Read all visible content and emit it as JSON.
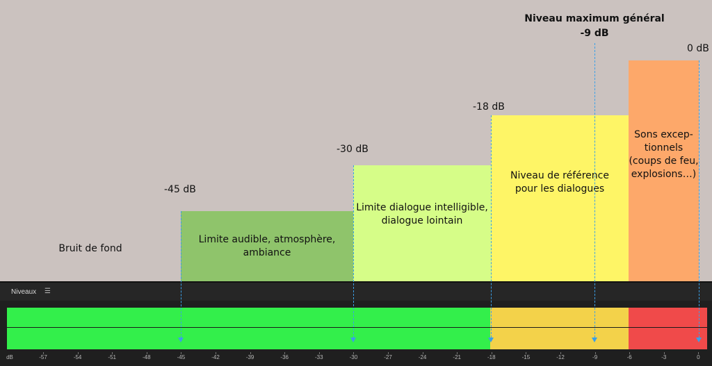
{
  "zones": [
    {
      "label": "Bruit de fond",
      "color": "#cbc2bf"
    },
    {
      "label": "Limite audible, atmosphère,\nambiance",
      "color": "#8fc46b",
      "level_label": "-45 dB"
    },
    {
      "label": "Limite dialogue intelligible,\ndialogue lointain",
      "color": "#d6fd88",
      "level_label": "-30 dB"
    },
    {
      "label": "Niveau de référence\npour les dialogues",
      "color": "#fef566",
      "level_label": "-18 dB"
    },
    {
      "label": "Sons excep-\ntionnels\n(coups de feu,\nexplosions…)",
      "color": "#fda86a",
      "level_label": "0 dB"
    }
  ],
  "max_level": {
    "title": "Niveau maximum général",
    "value": "-9 dB"
  },
  "meter": {
    "title": "Niveaux",
    "menu_icon": "hamburger-menu-icon",
    "bar_colors": {
      "green": "#33ef4b",
      "yellow": "#f3d24a",
      "red": "#f04a4a"
    },
    "scale_labels": [
      "dB",
      "-57",
      "-54",
      "-51",
      "-48",
      "-45",
      "-42",
      "-39",
      "-36",
      "-33",
      "-30",
      "-27",
      "-24",
      "-21",
      "-18",
      "-15",
      "-12",
      "-9",
      "-6",
      "-3",
      "0"
    ]
  },
  "guide_color": "#3aa0e8"
}
